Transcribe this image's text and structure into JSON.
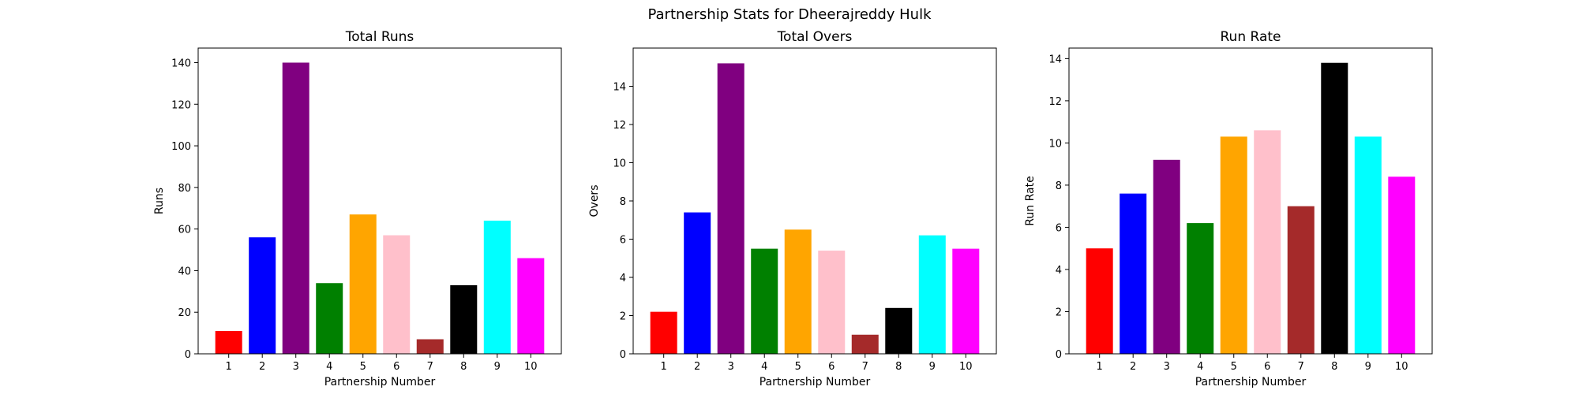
{
  "figure": {
    "suptitle": "Partnership Stats for Dheerajreddy Hulk"
  },
  "chart_data": [
    {
      "type": "bar",
      "title": "Total Runs",
      "xlabel": "Partnership Number",
      "ylabel": "Runs",
      "categories": [
        "1",
        "2",
        "3",
        "4",
        "5",
        "6",
        "7",
        "8",
        "9",
        "10"
      ],
      "values": [
        11,
        56,
        140,
        34,
        67,
        57,
        7,
        33,
        64,
        46
      ],
      "colors": [
        "#ff0000",
        "#0000ff",
        "#800080",
        "#008000",
        "#ffa500",
        "#ffc0cb",
        "#a52a2a",
        "#000000",
        "#00ffff",
        "#ff00ff"
      ],
      "ylim": [
        0,
        147
      ],
      "yticks": [
        0,
        20,
        40,
        60,
        80,
        100,
        120,
        140
      ],
      "grid": false
    },
    {
      "type": "bar",
      "title": "Total Overs",
      "xlabel": "Partnership Number",
      "ylabel": "Overs",
      "categories": [
        "1",
        "2",
        "3",
        "4",
        "5",
        "6",
        "7",
        "8",
        "9",
        "10"
      ],
      "values": [
        2.2,
        7.4,
        15.2,
        5.5,
        6.5,
        5.4,
        1.0,
        2.4,
        6.2,
        5.5
      ],
      "colors": [
        "#ff0000",
        "#0000ff",
        "#800080",
        "#008000",
        "#ffa500",
        "#ffc0cb",
        "#a52a2a",
        "#000000",
        "#00ffff",
        "#ff00ff"
      ],
      "ylim": [
        0,
        16
      ],
      "yticks": [
        0,
        2,
        4,
        6,
        8,
        10,
        12,
        14
      ],
      "grid": false
    },
    {
      "type": "bar",
      "title": "Run Rate",
      "xlabel": "Partnership Number",
      "ylabel": "Run Rate",
      "categories": [
        "1",
        "2",
        "3",
        "4",
        "5",
        "6",
        "7",
        "8",
        "9",
        "10"
      ],
      "values": [
        5.0,
        7.6,
        9.2,
        6.2,
        10.3,
        10.6,
        7.0,
        13.8,
        10.3,
        8.4
      ],
      "colors": [
        "#ff0000",
        "#0000ff",
        "#800080",
        "#008000",
        "#ffa500",
        "#ffc0cb",
        "#a52a2a",
        "#000000",
        "#00ffff",
        "#ff00ff"
      ],
      "ylim": [
        0,
        14.5
      ],
      "yticks": [
        0,
        2,
        4,
        6,
        8,
        10,
        12,
        14
      ],
      "grid": false
    }
  ]
}
